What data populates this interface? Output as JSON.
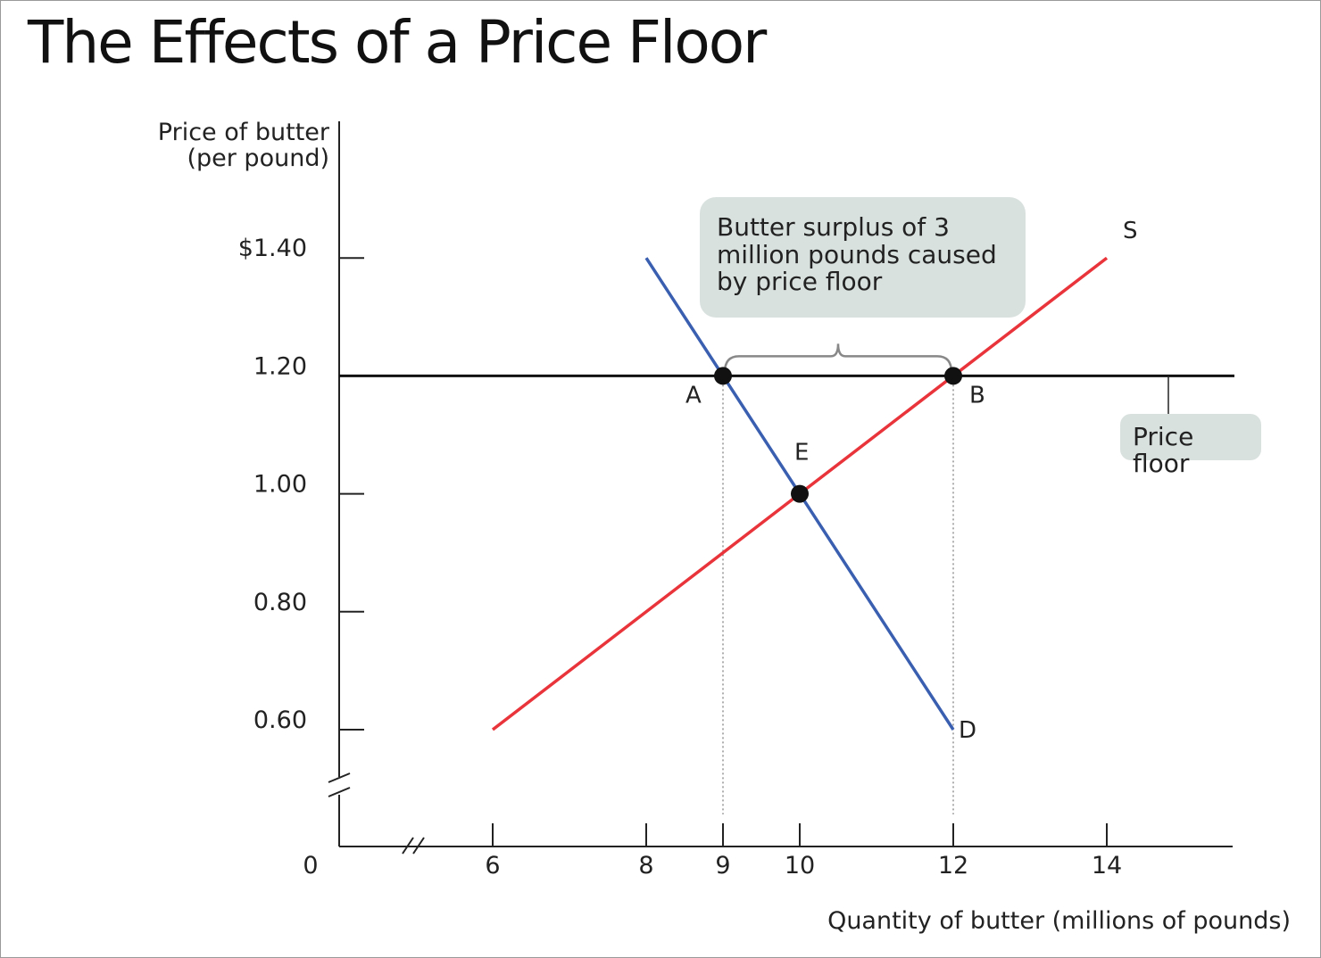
{
  "chart_data": {
    "type": "line",
    "title": "The Effects of a Price Floor",
    "ylabel": [
      "Price of butter",
      "(per pound)"
    ],
    "xlabel": "Quantity of butter (millions of pounds)",
    "origin_label": "0",
    "xlim": [
      6,
      15.8
    ],
    "ylim": [
      0.6,
      1.4
    ],
    "x_ticks": [
      {
        "value": 6,
        "label": "6"
      },
      {
        "value": 8,
        "label": "8"
      },
      {
        "value": 9,
        "label": "9"
      },
      {
        "value": 10,
        "label": "10"
      },
      {
        "value": 12,
        "label": "12"
      },
      {
        "value": 14,
        "label": "14"
      }
    ],
    "y_ticks": [
      {
        "value": 1.4,
        "label": "$1.40"
      },
      {
        "value": 1.2,
        "label": "1.20"
      },
      {
        "value": 1.0,
        "label": "1.00"
      },
      {
        "value": 0.8,
        "label": "0.80"
      },
      {
        "value": 0.6,
        "label": "0.60"
      }
    ],
    "series": [
      {
        "name": "S",
        "color": "#e8343a",
        "points": [
          [
            6,
            0.6
          ],
          [
            14,
            1.4
          ]
        ]
      },
      {
        "name": "D",
        "color": "#3a5fb0",
        "points": [
          [
            8,
            1.4
          ],
          [
            12,
            0.6
          ]
        ]
      }
    ],
    "price_floor": {
      "value": 1.2,
      "label": [
        "Price",
        "floor"
      ]
    },
    "points": [
      {
        "name": "A",
        "x": 9,
        "y": 1.2
      },
      {
        "name": "B",
        "x": 12,
        "y": 1.2
      },
      {
        "name": "E",
        "x": 10,
        "y": 1.0
      }
    ],
    "annotation": [
      "Butter surplus of 3",
      "million pounds caused",
      "by price floor"
    ],
    "axis_break": true
  }
}
